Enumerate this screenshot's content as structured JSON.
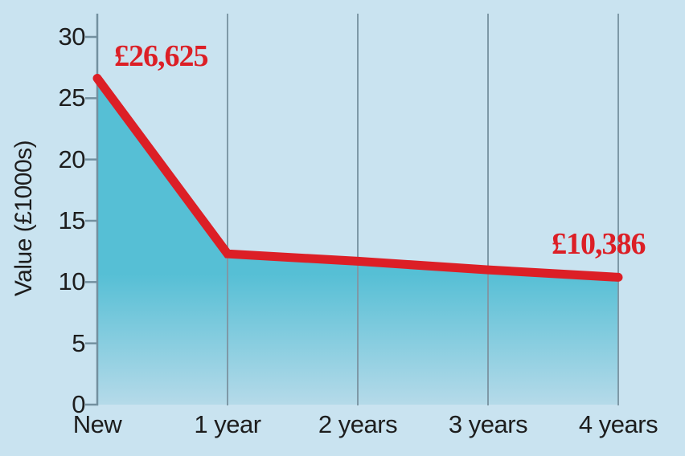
{
  "colors": {
    "background": "#C9E3F0",
    "area_top": "#56BFD5",
    "area_bottom": "#B5DAE9",
    "line": "#DC1F26",
    "grid": "#7E99A7",
    "axis": "#73909F",
    "text": "#1D1D1D",
    "annotation": "#DC1F26"
  },
  "chart_data": {
    "type": "line",
    "title": "",
    "xlabel": "",
    "ylabel": "Value (£1000s)",
    "x_categories": [
      "New",
      "1 year",
      "2 years",
      "3 years",
      "4 years"
    ],
    "series": [
      {
        "name": "Value (£1000s)",
        "values": [
          26.625,
          12.3,
          11.7,
          11.0,
          10.386
        ]
      }
    ],
    "y_ticks": [
      "0",
      "5",
      "10",
      "15",
      "20",
      "25",
      "30"
    ],
    "ylim": [
      0,
      30
    ],
    "grid": "vertical-gridlines-only",
    "legend": "none",
    "area_fill": true,
    "annotations": [
      {
        "text": "£26,625",
        "at": "New"
      },
      {
        "text": "£10,386",
        "at": "4 years"
      }
    ]
  }
}
